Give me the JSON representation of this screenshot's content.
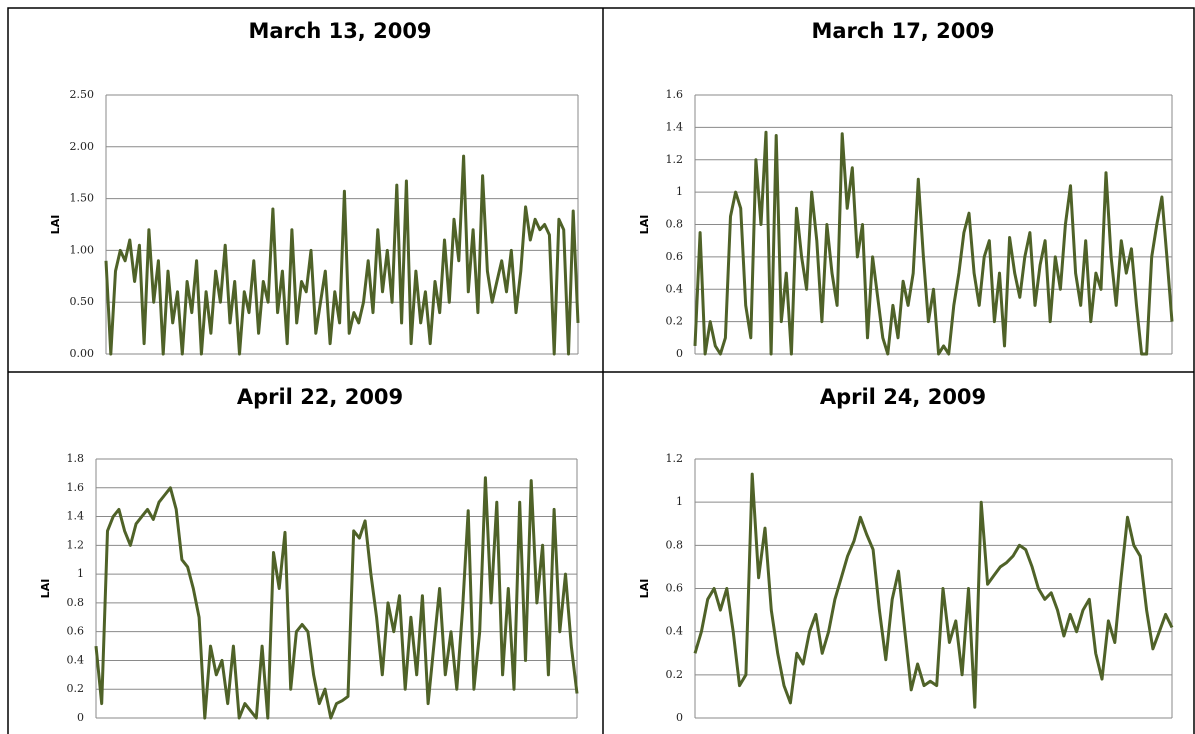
{
  "chart_data": [
    {
      "type": "line",
      "title": "March 13, 2009",
      "y_label": "LAI",
      "color": "#4f6228",
      "grid": true,
      "ylim": [
        0,
        2.5
      ],
      "yticks": [
        {
          "value": 0,
          "label": "0.00"
        },
        {
          "value": 0.5,
          "label": "0.50"
        },
        {
          "value": 1,
          "label": "1.00"
        },
        {
          "value": 1.5,
          "label": "1.50"
        },
        {
          "value": 2,
          "label": "2.00"
        },
        {
          "value": 2.5,
          "label": "2.50"
        }
      ],
      "values": [
        0.9,
        0,
        0.8,
        1.0,
        0.9,
        1.1,
        0.7,
        1.05,
        0.1,
        1.2,
        0.5,
        0.9,
        0,
        0.8,
        0.3,
        0.6,
        0,
        0.7,
        0.4,
        0.9,
        0,
        0.6,
        0.2,
        0.8,
        0.5,
        1.05,
        0.3,
        0.7,
        0,
        0.6,
        0.4,
        0.9,
        0.2,
        0.7,
        0.5,
        1.4,
        0.4,
        0.8,
        0.1,
        1.2,
        0.3,
        0.7,
        0.6,
        1.0,
        0.2,
        0.5,
        0.8,
        0.1,
        0.6,
        0.3,
        1.57,
        0.2,
        0.4,
        0.3,
        0.5,
        0.9,
        0.4,
        1.2,
        0.6,
        1.0,
        0.5,
        1.63,
        0.3,
        1.67,
        0.1,
        0.8,
        0.3,
        0.6,
        0.1,
        0.7,
        0.4,
        1.1,
        0.5,
        1.3,
        0.9,
        1.91,
        0.6,
        1.2,
        0.4,
        1.72,
        0.8,
        0.5,
        0.7,
        0.9,
        0.6,
        1.0,
        0.4,
        0.8,
        1.42,
        1.1,
        1.3,
        1.2,
        1.25,
        1.15,
        0.0,
        1.3,
        1.2,
        0,
        1.38,
        0.3
      ]
    },
    {
      "type": "line",
      "title": "March 17, 2009",
      "y_label": "LAI",
      "color": "#4f6228",
      "grid": true,
      "ylim": [
        0,
        1.6
      ],
      "yticks": [
        0,
        0.2,
        0.4,
        0.6,
        0.8,
        1,
        1.2,
        1.4,
        1.6
      ],
      "values": [
        0.05,
        0.75,
        0,
        0.2,
        0.05,
        0,
        0.1,
        0.85,
        1.0,
        0.9,
        0.3,
        0.1,
        1.2,
        0.8,
        1.37,
        0,
        1.35,
        0.2,
        0.5,
        0,
        0.9,
        0.6,
        0.4,
        1.0,
        0.7,
        0.2,
        0.8,
        0.5,
        0.3,
        1.36,
        0.9,
        1.15,
        0.6,
        0.8,
        0.1,
        0.6,
        0.35,
        0.1,
        0,
        0.3,
        0.1,
        0.45,
        0.3,
        0.5,
        1.08,
        0.6,
        0.2,
        0.4,
        0,
        0.05,
        0,
        0.3,
        0.5,
        0.75,
        0.87,
        0.5,
        0.3,
        0.6,
        0.7,
        0.2,
        0.5,
        0.05,
        0.72,
        0.5,
        0.35,
        0.6,
        0.75,
        0.3,
        0.55,
        0.7,
        0.2,
        0.6,
        0.4,
        0.8,
        1.04,
        0.5,
        0.3,
        0.7,
        0.2,
        0.5,
        0.4,
        1.12,
        0.6,
        0.3,
        0.7,
        0.5,
        0.65,
        0.3,
        0,
        0,
        0.6,
        0.8,
        0.97,
        0.6,
        0.2
      ]
    },
    {
      "type": "line",
      "title": "April 22, 2009",
      "y_label": "LAI",
      "color": "#4f6228",
      "grid": true,
      "ylim": [
        0,
        1.8
      ],
      "yticks": [
        0,
        0.2,
        0.4,
        0.6,
        0.8,
        1,
        1.2,
        1.4,
        1.6,
        1.8
      ],
      "values": [
        0.5,
        0.1,
        1.3,
        1.4,
        1.45,
        1.3,
        1.2,
        1.35,
        1.4,
        1.45,
        1.38,
        1.5,
        1.55,
        1.6,
        1.45,
        1.1,
        1.05,
        0.9,
        0.7,
        0,
        0.5,
        0.3,
        0.4,
        0.1,
        0.5,
        0,
        0.1,
        0.05,
        0,
        0.5,
        0,
        1.15,
        0.9,
        1.29,
        0.2,
        0.6,
        0.65,
        0.6,
        0.3,
        0.1,
        0.2,
        0,
        0.1,
        0.12,
        0.15,
        1.3,
        1.25,
        1.37,
        1.0,
        0.7,
        0.3,
        0.8,
        0.6,
        0.85,
        0.2,
        0.7,
        0.3,
        0.85,
        0.1,
        0.5,
        0.9,
        0.3,
        0.6,
        0.2,
        0.75,
        1.44,
        0.2,
        0.6,
        1.67,
        0.8,
        1.5,
        0.3,
        0.9,
        0.2,
        1.5,
        0.4,
        1.65,
        0.8,
        1.2,
        0.3,
        1.45,
        0.6,
        1.0,
        0.5,
        0.17
      ]
    },
    {
      "type": "line",
      "title": "April 24, 2009",
      "y_label": "LAI",
      "color": "#4f6228",
      "grid": true,
      "ylim": [
        0,
        1.2
      ],
      "yticks": [
        0,
        0.2,
        0.4,
        0.6,
        0.8,
        1,
        1.2
      ],
      "values": [
        0.3,
        0.4,
        0.55,
        0.6,
        0.5,
        0.6,
        0.4,
        0.15,
        0.2,
        1.13,
        0.65,
        0.88,
        0.5,
        0.3,
        0.15,
        0.07,
        0.3,
        0.25,
        0.4,
        0.48,
        0.3,
        0.4,
        0.55,
        0.65,
        0.75,
        0.82,
        0.93,
        0.85,
        0.78,
        0.5,
        0.27,
        0.55,
        0.68,
        0.4,
        0.13,
        0.25,
        0.15,
        0.17,
        0.15,
        0.6,
        0.35,
        0.45,
        0.2,
        0.6,
        0.05,
        1.0,
        0.62,
        0.66,
        0.7,
        0.72,
        0.75,
        0.8,
        0.78,
        0.7,
        0.6,
        0.55,
        0.58,
        0.5,
        0.38,
        0.48,
        0.4,
        0.5,
        0.55,
        0.3,
        0.18,
        0.45,
        0.35,
        0.65,
        0.93,
        0.8,
        0.75,
        0.5,
        0.32,
        0.4,
        0.48,
        0.42
      ]
    }
  ]
}
